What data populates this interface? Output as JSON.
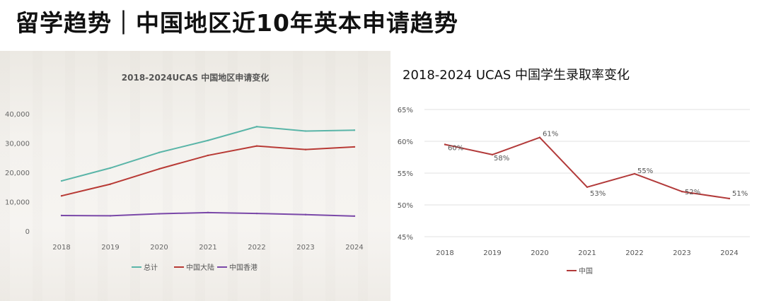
{
  "page": {
    "title": "留学趋势｜中国地区近10年英本申请趋势"
  },
  "chart_data": [
    {
      "type": "line",
      "title": "2018-2024UCAS 中国地区申请变化",
      "categories": [
        "2018",
        "2019",
        "2020",
        "2021",
        "2022",
        "2023",
        "2024"
      ],
      "y_ticks": [
        "40,000",
        "30,000",
        "20,000",
        "10,000",
        "0"
      ],
      "ylim": [
        0,
        40000
      ],
      "grid": false,
      "legend_position": "bottom",
      "series": [
        {
          "name": "总计",
          "color": "#5ab5a8",
          "values": [
            17100,
            21500,
            26800,
            30900,
            35600,
            34100,
            34400
          ]
        },
        {
          "name": "中国大陆",
          "color": "#b83a35",
          "values": [
            12000,
            16000,
            21200,
            25800,
            29000,
            27800,
            28700
          ]
        },
        {
          "name": "中国香港",
          "color": "#7a48a8",
          "values": [
            5300,
            5200,
            5900,
            6300,
            6000,
            5600,
            5100
          ]
        }
      ]
    },
    {
      "type": "line",
      "title": "2018-2024 UCAS 中国学生录取率变化",
      "categories": [
        "2018",
        "2019",
        "2020",
        "2021",
        "2022",
        "2023",
        "2024"
      ],
      "y_ticks": [
        "65%",
        "60%",
        "55%",
        "50%",
        "45%"
      ],
      "ylim": [
        45,
        65
      ],
      "grid": true,
      "legend_position": "bottom",
      "series": [
        {
          "name": "中国",
          "color": "#b23a3a",
          "values": [
            59.5,
            57.9,
            60.6,
            52.8,
            54.9,
            52.1,
            51.0
          ],
          "labels": [
            "60%",
            "58%",
            "61%",
            "53%",
            "55%",
            "52%",
            "51%"
          ]
        }
      ]
    }
  ]
}
